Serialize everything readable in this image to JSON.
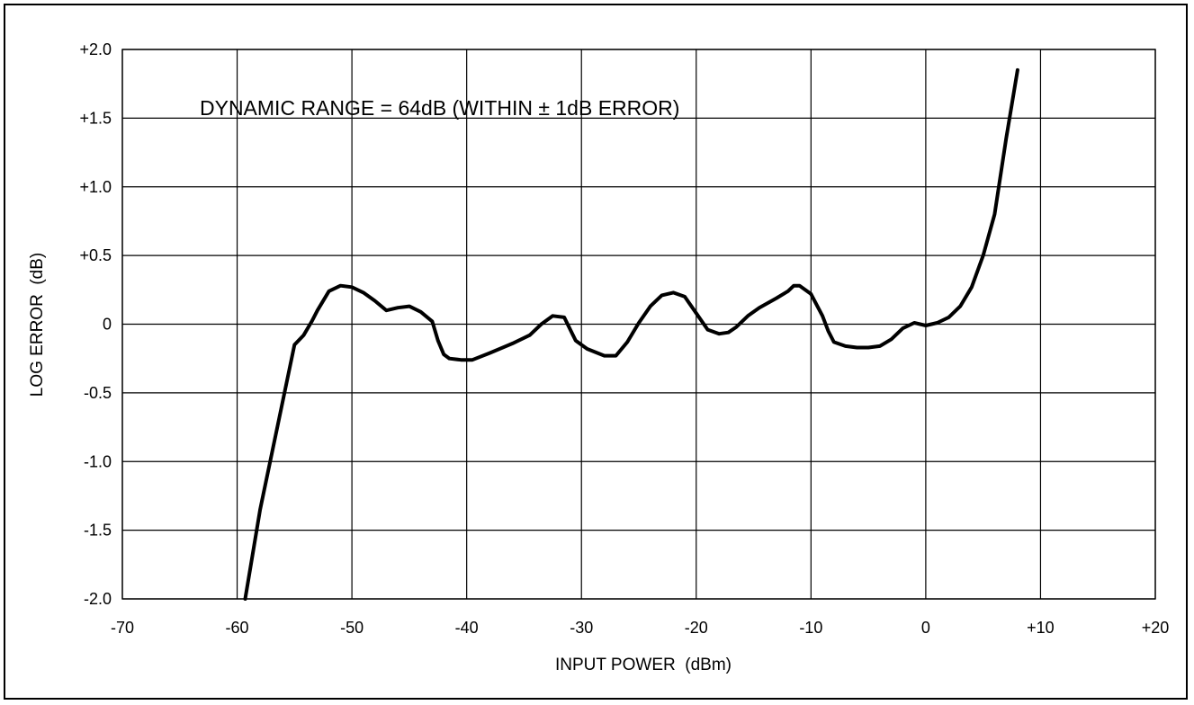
{
  "chart_data": {
    "type": "line",
    "title": "",
    "xlabel": "INPUT POWER  (dBm)",
    "ylabel": "LOG ERROR  (dB)",
    "xlim": [
      -70,
      20
    ],
    "ylim": [
      -2.0,
      2.0
    ],
    "x_ticks": [
      -70,
      -60,
      -50,
      -40,
      -30,
      -20,
      -10,
      0,
      10,
      20
    ],
    "x_tick_labels": [
      "-70",
      "-60",
      "-50",
      "-40",
      "-30",
      "-20",
      "-10",
      "0",
      "+10",
      "+20"
    ],
    "y_ticks": [
      2.0,
      1.5,
      1.0,
      0.5,
      0,
      -0.5,
      -1.0,
      -1.5,
      -2.0
    ],
    "y_tick_labels": [
      "+2.0",
      "+1.5",
      "+1.0",
      "+0.5",
      "0",
      "-0.5",
      "-1.0",
      "-1.5",
      "-2.0"
    ],
    "grid": true,
    "annotation": "DYNAMIC RANGE = 64dB (WITHIN ± 1dB ERROR)",
    "series": [
      {
        "x": [
          -59.3,
          -58,
          -56.5,
          -55,
          -54.2,
          -53.5,
          -53,
          -52,
          -51,
          -50,
          -49,
          -48,
          -47,
          -46,
          -45,
          -44,
          -43,
          -42.5,
          -42,
          -41.5,
          -40.5,
          -39.5,
          -38,
          -36,
          -34.5,
          -33.5,
          -32.5,
          -31.5,
          -30.5,
          -29.5,
          -28,
          -27,
          -26,
          -25,
          -24,
          -23,
          -22,
          -21,
          -20,
          -19,
          -18,
          -17.2,
          -16.5,
          -15.5,
          -14.5,
          -13,
          -12,
          -11.5,
          -11,
          -10,
          -9,
          -8.5,
          -8,
          -7,
          -6,
          -5,
          -4,
          -3,
          -2,
          -1,
          0,
          1,
          2,
          3,
          4,
          5,
          6,
          7,
          8
        ],
        "y": [
          -2.0,
          -1.35,
          -0.75,
          -0.15,
          -0.08,
          0.02,
          0.1,
          0.24,
          0.28,
          0.27,
          0.23,
          0.17,
          0.1,
          0.12,
          0.13,
          0.09,
          0.02,
          -0.12,
          -0.22,
          -0.25,
          -0.26,
          -0.26,
          -0.21,
          -0.14,
          -0.08,
          0.0,
          0.06,
          0.05,
          -0.12,
          -0.18,
          -0.23,
          -0.23,
          -0.13,
          0.01,
          0.13,
          0.21,
          0.23,
          0.2,
          0.08,
          -0.04,
          -0.07,
          -0.06,
          -0.02,
          0.06,
          0.12,
          0.19,
          0.24,
          0.28,
          0.28,
          0.22,
          0.06,
          -0.05,
          -0.13,
          -0.16,
          -0.17,
          -0.17,
          -0.16,
          -0.11,
          -0.03,
          0.01,
          -0.01,
          0.01,
          0.05,
          0.13,
          0.27,
          0.5,
          0.8,
          1.35,
          1.85
        ]
      }
    ]
  }
}
